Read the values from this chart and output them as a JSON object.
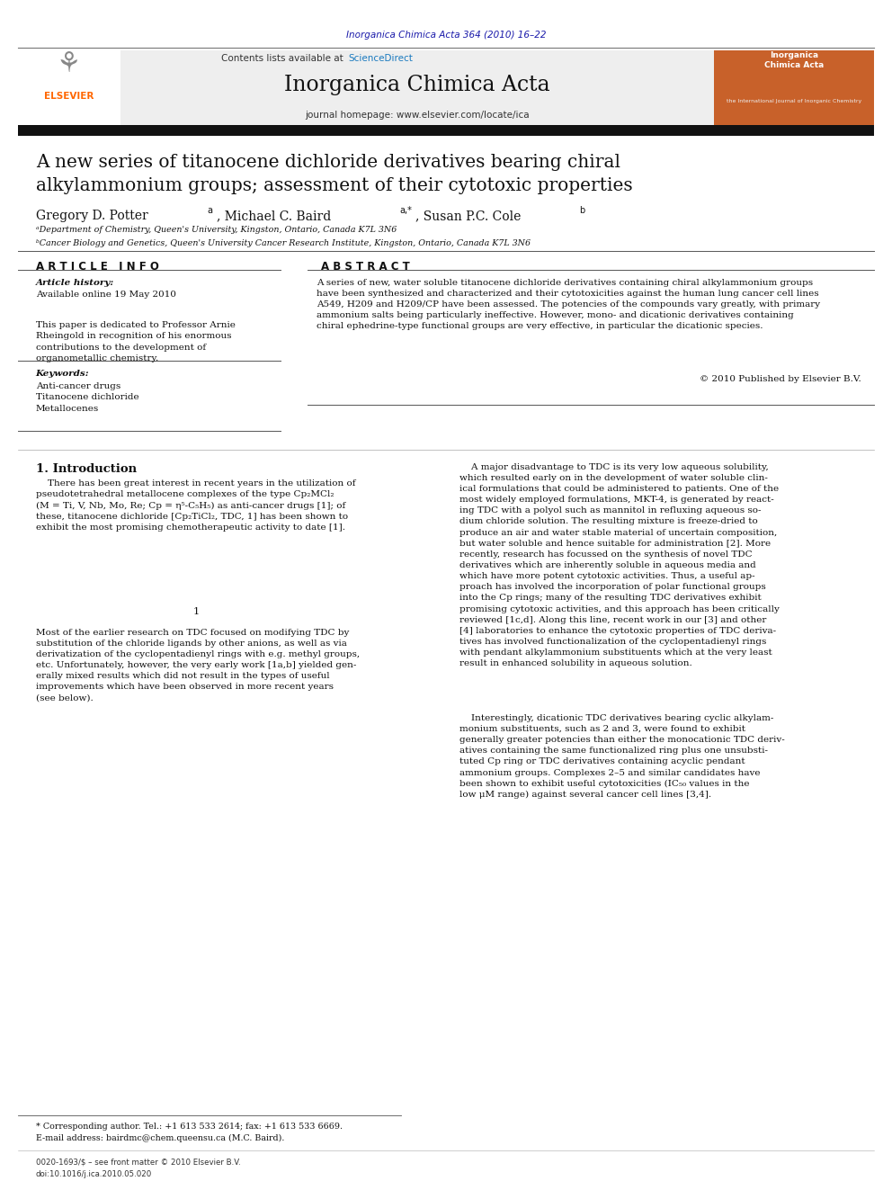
{
  "background_color": "#ffffff",
  "page_width": 9.92,
  "page_height": 13.23,
  "journal_ref": "Inorganica Chimica Acta 364 (2010) 16–22",
  "journal_ref_color": "#1a1aaa",
  "header_bg": "#e8e8e8",
  "header_text_contents": "Contents lists available at",
  "header_sciencedirect": "ScienceDirect",
  "header_sciencedirect_color": "#1a7abf",
  "journal_name": "Inorganica Chimica Acta",
  "journal_homepage": "journal homepage: www.elsevier.com/locate/ica",
  "thick_bar_color": "#1a1a1a",
  "title": "A new series of titanocene dichloride derivatives bearing chiral\nalkylammonium groups; assessment of their cytotoxic properties",
  "affil_a": "ᵃDepartment of Chemistry, Queen's University, Kingston, Ontario, Canada K7L 3N6",
  "affil_b": "ᵇCancer Biology and Genetics, Queen's University Cancer Research Institute, Kingston, Ontario, Canada K7L 3N6",
  "section_article_info": "A R T I C L E   I N F O",
  "section_abstract": "A B S T R A C T",
  "article_history_label": "Article history:",
  "article_history_value": "Available online 19 May 2010",
  "dedication": "This paper is dedicated to Professor Arnie\nRheingold in recognition of his enormous\ncontributions to the development of\norganometallic chemistry.",
  "keywords_label": "Keywords:",
  "keywords": "Anti-cancer drugs\nTitanocene dichloride\nMetallocenes",
  "abstract_text": "A series of new, water soluble titanocene dichloride derivatives containing chiral alkylammonium groups\nhave been synthesized and characterized and their cytotoxicities against the human lung cancer cell lines\nA549, H209 and H209/CP have been assessed. The potencies of the compounds vary greatly, with primary\nammonium salts being particularly ineffective. However, mono- and dicationic derivatives containing\nchiral ephedrine-type functional groups are very effective, in particular the dicationic species.",
  "copyright": "© 2010 Published by Elsevier B.V.",
  "intro_heading": "1. Introduction",
  "intro_col1_p1": "    There has been great interest in recent years in the utilization of\npseudotetrahedral metallocene complexes of the type Cp₂MCl₂\n(M = Ti, V, Nb, Mo, Re; Cp = η⁵-C₅H₅) as anti-cancer drugs [1]; of\nthese, titanocene dichloride [Cp₂TiCl₂, TDC, 1] has been shown to\nexhibit the most promising chemotherapeutic activity to date [1].",
  "intro_col1_p2": "Most of the earlier research on TDC focused on modifying TDC by\nsubstitution of the chloride ligands by other anions, as well as via\nderivatization of the cyclopentadienyl rings with e.g. methyl groups,\netc. Unfortunately, however, the very early work [1a,b] yielded gen-\nerally mixed results which did not result in the types of useful\nimprovements which have been observed in more recent years\n(see below).",
  "intro_col2_p1": "    A major disadvantage to TDC is its very low aqueous solubility,\nwhich resulted early on in the development of water soluble clin-\nical formulations that could be administered to patients. One of the\nmost widely employed formulations, MKT-4, is generated by react-\ning TDC with a polyol such as mannitol in refluxing aqueous so-\ndium chloride solution. The resulting mixture is freeze-dried to\nproduce an air and water stable material of uncertain composition,\nbut water soluble and hence suitable for administration [2]. More\nrecently, research has focussed on the synthesis of novel TDC\nderivatives which are inherently soluble in aqueous media and\nwhich have more potent cytotoxic activities. Thus, a useful ap-\nproach has involved the incorporation of polar functional groups\ninto the Cp rings; many of the resulting TDC derivatives exhibit\npromising cytotoxic activities, and this approach has been critically\nreviewed [1c,d]. Along this line, recent work in our [3] and other\n[4] laboratories to enhance the cytotoxic properties of TDC deriva-\ntives has involved functionalization of the cyclopentadienyl rings\nwith pendant alkylammonium substituents which at the very least\nresult in enhanced solubility in aqueous solution.",
  "intro_col2_p2": "    Interestingly, dicationic TDC derivatives bearing cyclic alkylam-\nmonium substituents, such as 2 and 3, were found to exhibit\ngenerally greater potencies than either the monocationic TDC deriv-\natives containing the same functionalized ring plus one unsubsti-\ntuted Cp ring or TDC derivatives containing acyclic pendant\nammonium groups. Complexes 2–5 and similar candidates have\nbeen shown to exhibit useful cytotoxicities (IC₅₀ values in the\nlow μM range) against several cancer cell lines [3,4].",
  "footnote_corresponding": "* Corresponding author. Tel.: +1 613 533 2614; fax: +1 613 533 6669.",
  "footnote_email": "E-mail address: bairdmc@chem.queensu.ca (M.C. Baird).",
  "footer_issn": "0020-1693/$ – see front matter © 2010 Elsevier B.V.",
  "footer_doi": "doi:10.1016/j.ica.2010.05.020",
  "elsevier_color": "#ff6600",
  "orange_cover_color": "#c8612a"
}
